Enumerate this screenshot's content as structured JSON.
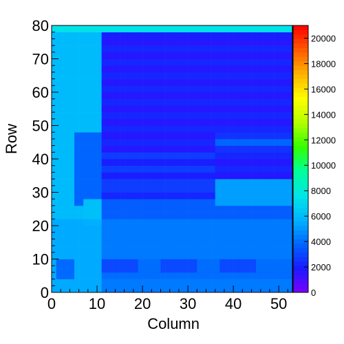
{
  "chart_data": {
    "type": "heatmap",
    "title": "",
    "xlabel": "Column",
    "ylabel": "Row",
    "xlim": [
      0,
      53
    ],
    "ylim": [
      0,
      80
    ],
    "x_ticks": [
      "0",
      "10",
      "20",
      "30",
      "40",
      "50"
    ],
    "y_ticks": [
      "0",
      "10",
      "20",
      "30",
      "40",
      "50",
      "60",
      "70",
      "80"
    ],
    "color_scale": {
      "min": 0,
      "max": 21000,
      "ticks": [
        "0",
        "2000",
        "4000",
        "6000",
        "8000",
        "10000",
        "12000",
        "14000",
        "16000",
        "18000",
        "20000"
      ],
      "palette": [
        "#7a00ff",
        "#1a1aff",
        "#0066ff",
        "#00b4ff",
        "#00e6e6",
        "#00ff99",
        "#33ff00",
        "#b3ff00",
        "#ffff00",
        "#ffb300",
        "#ff5a00",
        "#ff0000"
      ]
    },
    "grid": false,
    "cell_width_units": 1,
    "cell_height_units": 2,
    "regions": [
      {
        "x0": 0,
        "x1": 11,
        "y0": 0,
        "y1": 80,
        "value": 6000
      },
      {
        "x0": 11,
        "x1": 53,
        "y0": 28,
        "y1": 80,
        "value": 2200
      },
      {
        "x0": 11,
        "x1": 53,
        "y0": 0,
        "y1": 28,
        "value": 3600
      },
      {
        "x0": 5,
        "x1": 11,
        "y0": 26,
        "y1": 48,
        "value": 3800
      },
      {
        "x0": 7,
        "x1": 11,
        "y0": 20,
        "y1": 28,
        "value": 6200
      },
      {
        "x0": 36,
        "x1": 53,
        "y0": 26,
        "y1": 34,
        "value": 5200
      },
      {
        "x0": 36,
        "x1": 53,
        "y0": 42,
        "y1": 48,
        "value": 3800
      },
      {
        "x0": 11,
        "x1": 36,
        "y0": 30,
        "y1": 42,
        "value": 2800
      },
      {
        "x0": 11,
        "x1": 53,
        "y0": 76,
        "y1": 80,
        "value": 2000
      },
      {
        "x0": 1,
        "x1": 5,
        "y0": 4,
        "y1": 10,
        "value": 2800
      },
      {
        "x0": 11,
        "x1": 53,
        "y0": 4,
        "y1": 10,
        "value": 3000
      },
      {
        "x0": 11,
        "x1": 19,
        "y0": 6,
        "y1": 10,
        "value": 1200
      },
      {
        "x0": 24,
        "x1": 32,
        "y0": 6,
        "y1": 10,
        "value": 1200
      },
      {
        "x0": 37,
        "x1": 45,
        "y0": 6,
        "y1": 10,
        "value": 1200
      },
      {
        "x0": 0,
        "x1": 53,
        "y0": 78,
        "y1": 80,
        "value": 7500
      }
    ],
    "stripes": [
      {
        "x0": 11,
        "x1": 53,
        "rows": [
          34,
          38,
          42,
          46,
          50,
          54,
          58,
          62,
          66,
          70,
          74
        ],
        "value": 1200
      },
      {
        "x0": 0,
        "x1": 53,
        "rows": [
          0,
          2,
          4,
          6,
          8,
          10,
          12,
          14,
          16,
          18,
          20
        ],
        "value": 5000
      }
    ]
  }
}
